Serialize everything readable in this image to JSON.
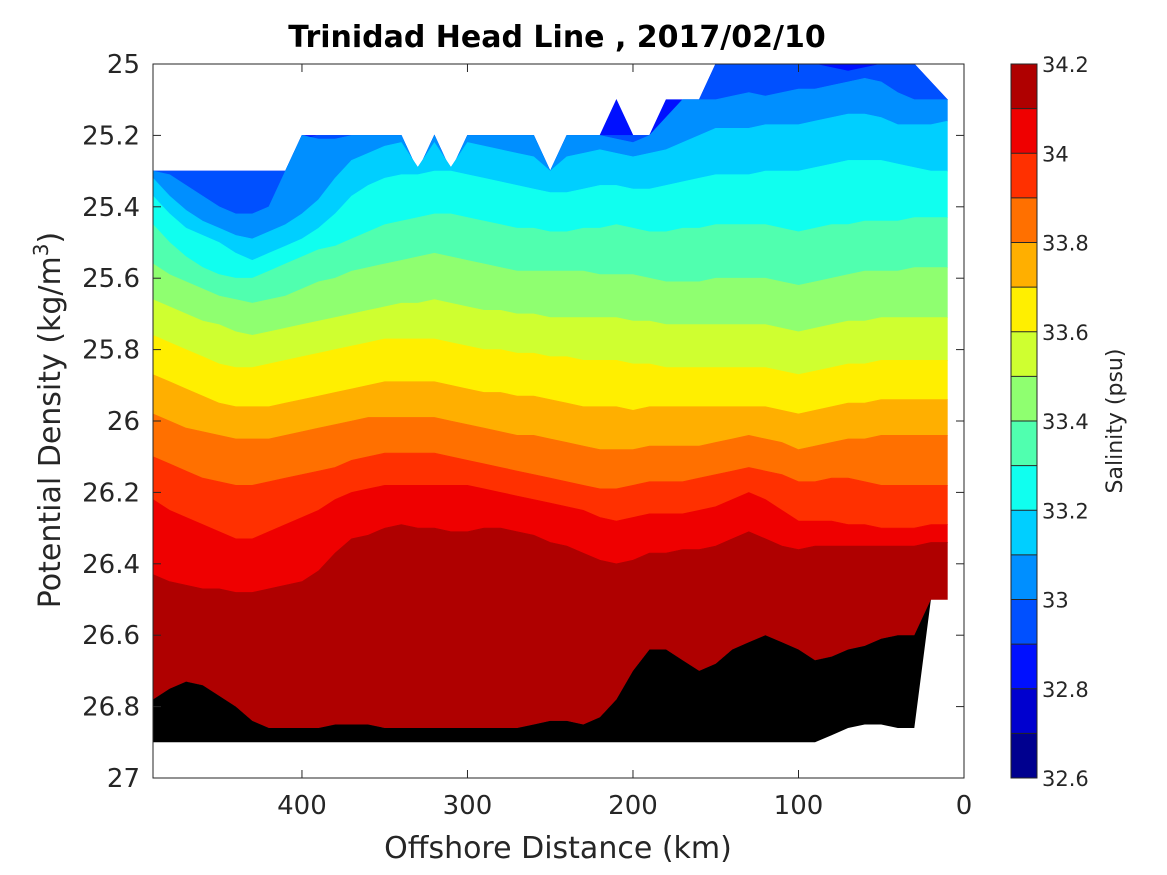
{
  "chart_data": {
    "type": "heatmap",
    "subtype": "filled-contour",
    "title": "Trinidad Head Line , 2017/02/10",
    "xlabel": "Offshore Distance (km)",
    "ylabel_main": "Potential Density (kg/m",
    "ylabel_sup": "3",
    "ylabel_end": ")",
    "colorbar_label": "Salinity (psu)",
    "xlim": [
      490,
      0
    ],
    "x_reversed": true,
    "ylim": [
      25,
      27
    ],
    "y_reversed": true,
    "x_ticks": [
      400,
      300,
      200,
      100,
      0
    ],
    "x_tick_labels": [
      "400",
      "300",
      "200",
      "100",
      "0"
    ],
    "y_ticks": [
      25,
      25.2,
      25.4,
      25.6,
      25.8,
      26,
      26.2,
      26.4,
      26.6,
      26.8,
      27
    ],
    "y_tick_labels": [
      "25",
      "25.2",
      "25.4",
      "25.6",
      "25.8",
      "26",
      "26.2",
      "26.4",
      "26.6",
      "26.8",
      "27"
    ],
    "colorbar_range": [
      32.6,
      34.2
    ],
    "colorbar_tick_values": [
      32.6,
      32.8,
      33,
      33.2,
      33.4,
      33.6,
      33.8,
      34,
      34.2
    ],
    "colorbar_tick_labels": [
      "32.6",
      "32.8",
      "33",
      "33.2",
      "33.4",
      "33.6",
      "33.8",
      "34",
      "34.2"
    ],
    "levels": [
      32.6,
      32.7,
      32.8,
      32.9,
      33.0,
      33.1,
      33.2,
      33.3,
      33.4,
      33.5,
      33.6,
      33.7,
      33.8,
      33.9,
      34.0,
      34.1,
      34.2
    ],
    "level_colors": [
      "#00008f",
      "#0000cf",
      "#0010ff",
      "#0050ff",
      "#008fff",
      "#00cfff",
      "#10ffef",
      "#50ffaf",
      "#8fff70",
      "#cfff30",
      "#ffef00",
      "#ffaf00",
      "#ff7000",
      "#ff3000",
      "#ef0000",
      "#af0000"
    ],
    "x_distances_km": [
      490,
      480,
      470,
      460,
      450,
      440,
      430,
      420,
      410,
      400,
      390,
      380,
      370,
      360,
      350,
      340,
      330,
      320,
      310,
      300,
      290,
      280,
      270,
      260,
      250,
      240,
      230,
      220,
      210,
      200,
      190,
      180,
      170,
      160,
      150,
      140,
      130,
      120,
      110,
      100,
      90,
      80,
      70,
      60,
      50,
      40,
      30,
      20,
      10
    ],
    "data_top_density": [
      25.3,
      25.3,
      25.3,
      25.3,
      25.3,
      25.3,
      25.3,
      25.3,
      25.3,
      25.2,
      25.2,
      25.2,
      25.2,
      25.2,
      25.2,
      25.2,
      25.3,
      25.2,
      25.3,
      25.2,
      25.2,
      25.2,
      25.2,
      25.2,
      25.3,
      25.2,
      25.2,
      25.2,
      25.1,
      25.2,
      25.2,
      25.1,
      25.1,
      25.1,
      25.0,
      25.0,
      25.0,
      25.0,
      25.0,
      25.0,
      25.0,
      25.0,
      25.0,
      25.0,
      25.0,
      25.0,
      25.0,
      25.05,
      25.1
    ],
    "data_bottom_density": [
      26.9,
      26.9,
      26.9,
      26.9,
      26.9,
      26.9,
      26.9,
      26.9,
      26.9,
      26.9,
      26.9,
      26.9,
      26.9,
      26.9,
      26.9,
      26.9,
      26.9,
      26.9,
      26.9,
      26.9,
      26.9,
      26.9,
      26.9,
      26.9,
      26.9,
      26.9,
      26.9,
      26.9,
      26.9,
      26.9,
      26.9,
      26.9,
      26.9,
      26.9,
      26.9,
      26.9,
      26.9,
      26.9,
      26.9,
      26.9,
      26.9,
      26.9,
      26.9,
      26.9,
      26.9,
      26.9,
      26.9,
      26.5,
      26.5
    ],
    "contours": [
      {
        "level": 32.8,
        "density": [
          25.3,
          25.3,
          25.3,
          25.3,
          25.3,
          25.3,
          25.3,
          25.3,
          25.3,
          25.21,
          25.2,
          25.2,
          25.2,
          25.2,
          25.2,
          25.2,
          25.3,
          25.2,
          25.3,
          25.2,
          25.2,
          25.2,
          25.2,
          25.2,
          25.3,
          25.2,
          25.2,
          25.2,
          25.2,
          25.2,
          25.2,
          25.15,
          25.1,
          25.1,
          25.0,
          25.0,
          25.0,
          25.0,
          25.0,
          25.0,
          25.0,
          25.01,
          25.02,
          25.01,
          25.0,
          25.0,
          25.0,
          25.05,
          25.1
        ]
      },
      {
        "level": 32.9,
        "density": [
          25.3,
          25.31,
          25.34,
          25.37,
          25.4,
          25.42,
          25.42,
          25.4,
          25.3,
          25.2,
          25.21,
          25.21,
          25.2,
          25.2,
          25.2,
          25.2,
          25.3,
          25.2,
          25.3,
          25.2,
          25.2,
          25.2,
          25.2,
          25.2,
          25.3,
          25.2,
          25.2,
          25.2,
          25.21,
          25.22,
          25.2,
          25.15,
          25.1,
          25.1,
          25.1,
          25.09,
          25.08,
          25.09,
          25.08,
          25.07,
          25.07,
          25.06,
          25.05,
          25.04,
          25.05,
          25.08,
          25.1,
          25.1,
          25.1
        ]
      },
      {
        "level": 33.0,
        "density": [
          25.32,
          25.37,
          25.41,
          25.44,
          25.46,
          25.48,
          25.49,
          25.47,
          25.45,
          25.42,
          25.38,
          25.32,
          25.27,
          25.25,
          25.23,
          25.22,
          25.29,
          25.22,
          25.29,
          25.22,
          25.23,
          25.24,
          25.25,
          25.26,
          25.3,
          25.26,
          25.25,
          25.24,
          25.25,
          25.26,
          25.25,
          25.24,
          25.22,
          25.2,
          25.18,
          25.18,
          25.18,
          25.17,
          25.17,
          25.17,
          25.16,
          25.15,
          25.14,
          25.14,
          25.15,
          25.17,
          25.17,
          25.17,
          25.16
        ]
      },
      {
        "level": 33.1,
        "density": [
          25.37,
          25.42,
          25.46,
          25.48,
          25.5,
          25.53,
          25.55,
          25.53,
          25.51,
          25.49,
          25.46,
          25.42,
          25.37,
          25.34,
          25.32,
          25.31,
          25.31,
          25.3,
          25.3,
          25.31,
          25.32,
          25.33,
          25.34,
          25.35,
          25.36,
          25.36,
          25.35,
          25.34,
          25.34,
          25.35,
          25.35,
          25.34,
          25.33,
          25.32,
          25.31,
          25.31,
          25.31,
          25.3,
          25.3,
          25.3,
          25.29,
          25.28,
          25.27,
          25.27,
          25.27,
          25.28,
          25.29,
          25.3,
          25.3
        ]
      },
      {
        "level": 33.2,
        "density": [
          25.45,
          25.5,
          25.54,
          25.57,
          25.59,
          25.6,
          25.6,
          25.58,
          25.56,
          25.54,
          25.52,
          25.51,
          25.49,
          25.47,
          25.45,
          25.44,
          25.43,
          25.42,
          25.42,
          25.43,
          25.44,
          25.45,
          25.46,
          25.46,
          25.47,
          25.47,
          25.46,
          25.46,
          25.45,
          25.46,
          25.47,
          25.47,
          25.46,
          25.46,
          25.45,
          25.45,
          25.45,
          25.45,
          25.46,
          25.47,
          25.46,
          25.45,
          25.45,
          25.44,
          25.44,
          25.44,
          25.43,
          25.43,
          25.43
        ]
      },
      {
        "level": 33.3,
        "density": [
          25.56,
          25.59,
          25.61,
          25.63,
          25.65,
          25.66,
          25.67,
          25.66,
          25.65,
          25.63,
          25.61,
          25.6,
          25.58,
          25.57,
          25.56,
          25.55,
          25.54,
          25.53,
          25.54,
          25.55,
          25.56,
          25.57,
          25.58,
          25.58,
          25.58,
          25.58,
          25.58,
          25.59,
          25.59,
          25.59,
          25.6,
          25.61,
          25.61,
          25.61,
          25.6,
          25.6,
          25.6,
          25.6,
          25.61,
          25.62,
          25.61,
          25.6,
          25.59,
          25.58,
          25.58,
          25.58,
          25.57,
          25.57,
          25.57
        ]
      },
      {
        "level": 33.4,
        "density": [
          25.66,
          25.68,
          25.7,
          25.72,
          25.73,
          25.75,
          25.76,
          25.75,
          25.74,
          25.73,
          25.72,
          25.71,
          25.7,
          25.69,
          25.68,
          25.67,
          25.67,
          25.66,
          25.67,
          25.68,
          25.69,
          25.69,
          25.7,
          25.7,
          25.71,
          25.71,
          25.71,
          25.71,
          25.71,
          25.72,
          25.72,
          25.73,
          25.73,
          25.73,
          25.73,
          25.73,
          25.73,
          25.73,
          25.74,
          25.75,
          25.74,
          25.73,
          25.72,
          25.72,
          25.71,
          25.71,
          25.71,
          25.71,
          25.71
        ]
      },
      {
        "level": 33.5,
        "density": [
          25.76,
          25.78,
          25.8,
          25.82,
          25.84,
          25.85,
          25.85,
          25.84,
          25.83,
          25.82,
          25.81,
          25.8,
          25.79,
          25.78,
          25.77,
          25.77,
          25.77,
          25.77,
          25.78,
          25.79,
          25.8,
          25.8,
          25.81,
          25.81,
          25.82,
          25.82,
          25.83,
          25.83,
          25.83,
          25.84,
          25.84,
          25.85,
          25.85,
          25.85,
          25.85,
          25.85,
          25.85,
          25.85,
          25.86,
          25.87,
          25.86,
          25.85,
          25.84,
          25.84,
          25.83,
          25.83,
          25.83,
          25.83,
          25.83
        ]
      },
      {
        "level": 33.6,
        "density": [
          25.87,
          25.89,
          25.91,
          25.93,
          25.95,
          25.96,
          25.96,
          25.96,
          25.95,
          25.94,
          25.93,
          25.92,
          25.91,
          25.9,
          25.89,
          25.89,
          25.89,
          25.89,
          25.9,
          25.91,
          25.92,
          25.92,
          25.93,
          25.93,
          25.94,
          25.95,
          25.96,
          25.96,
          25.96,
          25.97,
          25.96,
          25.96,
          25.96,
          25.96,
          25.96,
          25.96,
          25.96,
          25.96,
          25.97,
          25.98,
          25.97,
          25.96,
          25.95,
          25.95,
          25.94,
          25.94,
          25.94,
          25.94,
          25.94
        ]
      },
      {
        "level": 33.7,
        "density": [
          25.98,
          26.0,
          26.02,
          26.03,
          26.04,
          26.05,
          26.05,
          26.05,
          26.04,
          26.03,
          26.02,
          26.01,
          26.0,
          25.99,
          25.99,
          25.99,
          25.99,
          25.99,
          26.0,
          26.01,
          26.02,
          26.03,
          26.04,
          26.04,
          26.05,
          26.06,
          26.07,
          26.08,
          26.08,
          26.08,
          26.07,
          26.07,
          26.07,
          26.07,
          26.06,
          26.05,
          26.04,
          26.05,
          26.06,
          26.08,
          26.07,
          26.06,
          26.05,
          26.05,
          26.04,
          26.04,
          26.04,
          26.04,
          26.04
        ]
      },
      {
        "level": 33.8,
        "density": [
          26.1,
          26.12,
          26.14,
          26.16,
          26.17,
          26.18,
          26.18,
          26.17,
          26.16,
          26.15,
          26.14,
          26.13,
          26.11,
          26.1,
          26.09,
          26.09,
          26.09,
          26.09,
          26.1,
          26.11,
          26.12,
          26.13,
          26.14,
          26.15,
          26.16,
          26.17,
          26.18,
          26.19,
          26.19,
          26.18,
          26.17,
          26.17,
          26.17,
          26.16,
          26.15,
          26.14,
          26.13,
          26.14,
          26.15,
          26.17,
          26.17,
          26.16,
          26.16,
          26.17,
          26.18,
          26.18,
          26.18,
          26.18,
          26.18
        ]
      },
      {
        "level": 33.9,
        "density": [
          26.22,
          26.25,
          26.27,
          26.29,
          26.31,
          26.33,
          26.33,
          26.31,
          26.29,
          26.27,
          26.25,
          26.22,
          26.2,
          26.19,
          26.18,
          26.18,
          26.18,
          26.18,
          26.18,
          26.18,
          26.19,
          26.2,
          26.21,
          26.22,
          26.23,
          26.24,
          26.25,
          26.27,
          26.28,
          26.27,
          26.26,
          26.26,
          26.26,
          26.25,
          26.24,
          26.22,
          26.2,
          26.22,
          26.25,
          26.28,
          26.28,
          26.28,
          26.29,
          26.29,
          26.3,
          26.3,
          26.3,
          26.29,
          26.29
        ]
      },
      {
        "level": 34.0,
        "density": [
          26.43,
          26.45,
          26.46,
          26.47,
          26.47,
          26.48,
          26.48,
          26.47,
          26.46,
          26.45,
          26.42,
          26.37,
          26.33,
          26.32,
          26.3,
          26.29,
          26.3,
          26.3,
          26.31,
          26.31,
          26.3,
          26.3,
          26.31,
          26.32,
          26.34,
          26.35,
          26.37,
          26.39,
          26.4,
          26.39,
          26.37,
          26.37,
          26.36,
          26.36,
          26.35,
          26.33,
          26.31,
          26.33,
          26.35,
          26.36,
          26.35,
          26.35,
          26.35,
          26.35,
          26.35,
          26.35,
          26.35,
          26.34,
          26.34
        ]
      },
      {
        "level": 34.1,
        "density": [
          26.78,
          26.75,
          26.73,
          26.74,
          26.77,
          26.8,
          26.84,
          26.86,
          26.86,
          26.86,
          26.86,
          26.85,
          26.85,
          26.85,
          26.86,
          26.86,
          26.86,
          26.86,
          26.86,
          26.86,
          26.86,
          26.86,
          26.86,
          26.85,
          26.84,
          26.84,
          26.85,
          26.83,
          26.78,
          26.7,
          26.64,
          26.64,
          26.67,
          26.7,
          26.68,
          26.64,
          26.62,
          26.6,
          26.62,
          26.64,
          26.67,
          26.66,
          26.64,
          26.63,
          26.61,
          26.6,
          26.6,
          26.5,
          26.5
        ]
      },
      {
        "level": 34.2,
        "density": [
          26.9,
          26.9,
          26.9,
          26.9,
          26.9,
          26.9,
          26.9,
          26.9,
          26.9,
          26.9,
          26.9,
          26.9,
          26.9,
          26.9,
          26.9,
          26.9,
          26.9,
          26.9,
          26.9,
          26.9,
          26.9,
          26.9,
          26.9,
          26.9,
          26.9,
          26.9,
          26.9,
          26.9,
          26.9,
          26.9,
          26.9,
          26.9,
          26.9,
          26.9,
          26.9,
          26.9,
          26.9,
          26.9,
          26.9,
          26.9,
          26.9,
          26.88,
          26.86,
          26.85,
          26.85,
          26.86,
          26.86,
          26.5,
          26.5
        ]
      }
    ],
    "grid": false
  }
}
